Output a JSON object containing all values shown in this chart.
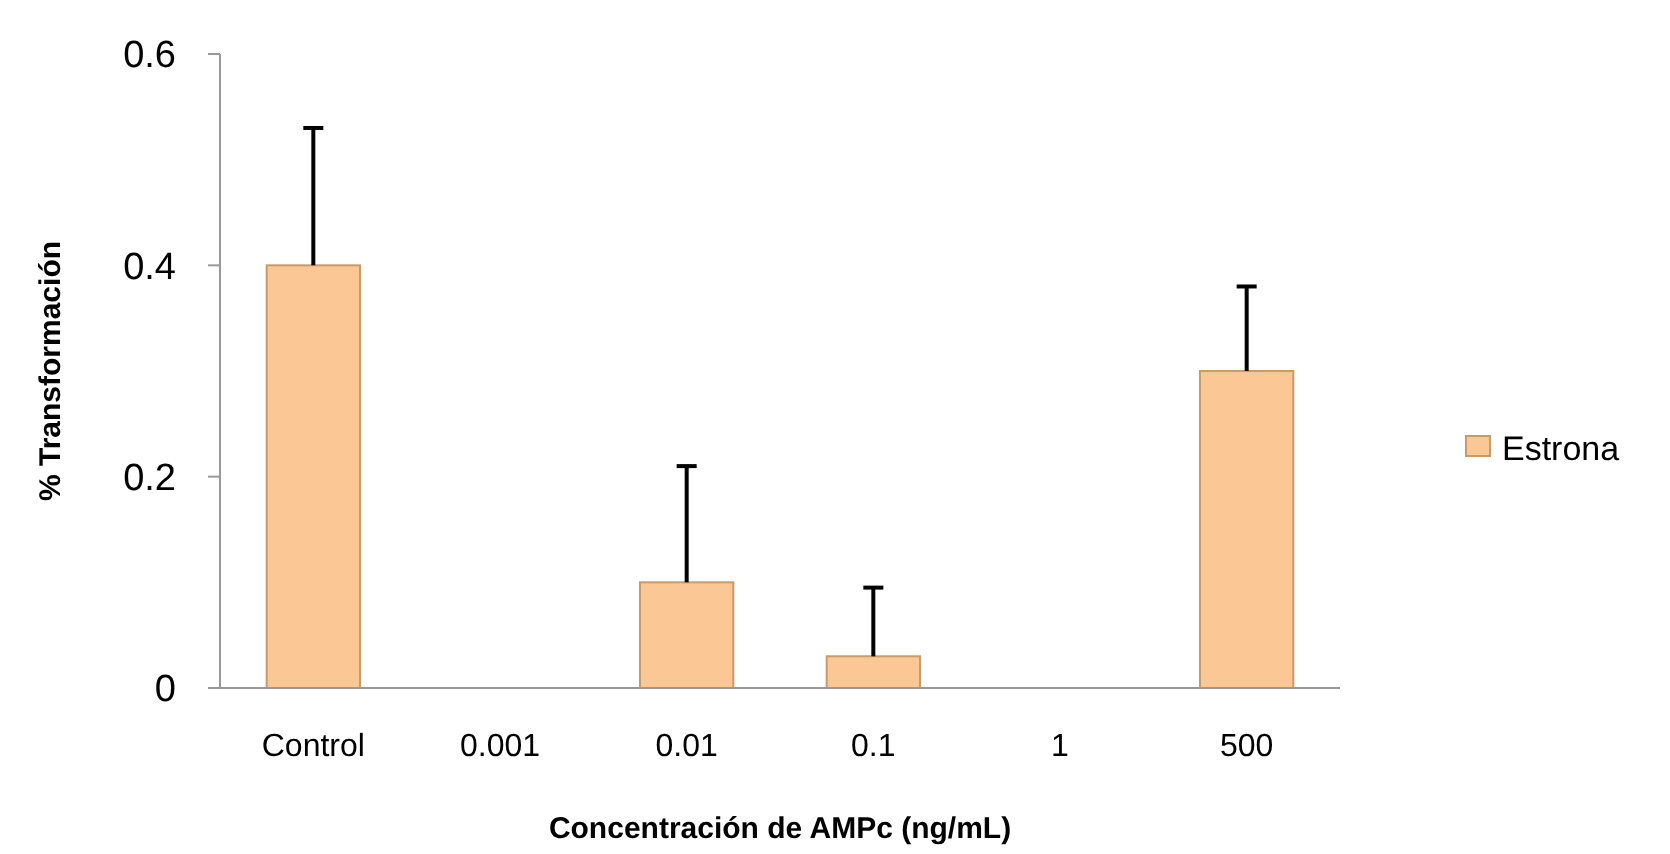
{
  "chart_data": {
    "type": "bar",
    "xlabel": "Concentración de AMPc (ng/mL)",
    "ylabel": "% Transformación",
    "categories": [
      "Control",
      "0.001",
      "0.01",
      "0.1",
      "1",
      "500"
    ],
    "series": [
      {
        "name": "Estrona",
        "color": "#fbc795",
        "values": [
          0.4,
          0,
          0.1,
          0.03,
          0,
          0.3
        ],
        "errors": [
          [
            0.4,
            0.53
          ],
          null,
          [
            0.1,
            0.21
          ],
          [
            0.03,
            0.095
          ],
          null,
          [
            0.3,
            0.38
          ]
        ]
      }
    ],
    "ylim": [
      0,
      0.6
    ],
    "yticks": [
      0,
      0.2,
      0.4,
      0.6
    ],
    "grid": false,
    "legend": "right"
  }
}
